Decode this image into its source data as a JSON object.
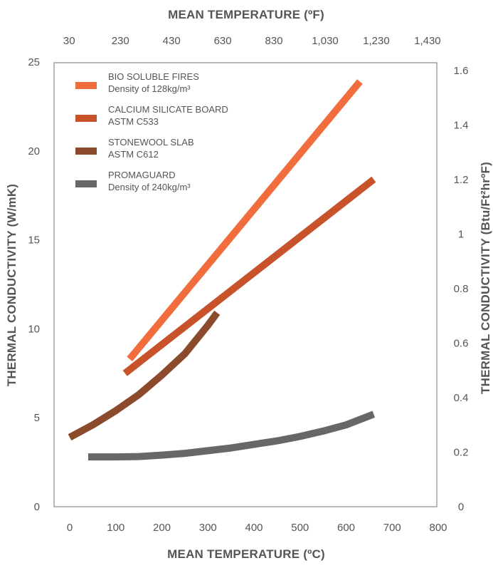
{
  "chart_data": {
    "type": "line",
    "x_axis": {
      "label": "MEAN TEMPERATURE (ºC)",
      "range": [
        0,
        800
      ],
      "ticks": [
        0,
        100,
        200,
        300,
        400,
        500,
        600,
        700,
        800
      ],
      "tick_labels": [
        "0",
        "100",
        "200",
        "300",
        "400",
        "500",
        "600",
        "700",
        "800"
      ]
    },
    "x2_axis": {
      "label": "MEAN TEMPERATURE (ºF)",
      "tick_labels": [
        "30",
        "230",
        "430",
        "630",
        "830",
        "1,030",
        "1,230",
        "1,430"
      ]
    },
    "y_axis": {
      "label": "THERMAL CONDUCTIVITY (W/mK)",
      "range": [
        0,
        25
      ],
      "ticks": [
        0,
        5,
        10,
        15,
        20,
        25
      ],
      "tick_labels": [
        "0",
        "5",
        "10",
        "15",
        "20",
        "25"
      ]
    },
    "y2_axis": {
      "label": "THERMAL CONDUCTIVITY (Btu/Ft²hrºF)",
      "range": [
        0,
        1.7
      ],
      "ticks": [
        0,
        0.2,
        0.4,
        0.6,
        0.8,
        1,
        1.2,
        1.4,
        1.6
      ],
      "tick_labels": [
        "0",
        "0.2",
        "0.4",
        "0.6",
        "0.8",
        "1",
        "1.2",
        "1.4",
        "1.6"
      ]
    },
    "grid": false,
    "legend_position": "top-left",
    "series": [
      {
        "name": "BIO SOLUBLE FIRES",
        "subtitle": "Density of 128kg/m³",
        "color": "#f26d3d",
        "x": [
          130,
          630
        ],
        "y": [
          8.3,
          23.9
        ]
      },
      {
        "name": "CALCIUM SILICATE BOARD",
        "subtitle": "ASTM C533",
        "color": "#c8522a",
        "x": [
          120,
          660
        ],
        "y": [
          7.5,
          18.4
        ]
      },
      {
        "name": "STONEWOOL SLAB",
        "subtitle": "ASTM C612",
        "color": "#8b4a2b",
        "x": [
          0,
          50,
          100,
          150,
          200,
          250,
          300,
          320
        ],
        "y": [
          3.9,
          4.6,
          5.4,
          6.3,
          7.4,
          8.6,
          10.2,
          10.9
        ]
      },
      {
        "name": "PROMAGUARD",
        "subtitle": "Density of 240kg/m³",
        "color": "#666868",
        "x": [
          40,
          100,
          150,
          200,
          250,
          300,
          350,
          400,
          450,
          500,
          550,
          600,
          660
        ],
        "y": [
          2.8,
          2.8,
          2.82,
          2.9,
          3.0,
          3.15,
          3.3,
          3.5,
          3.7,
          3.95,
          4.25,
          4.6,
          5.2
        ]
      }
    ]
  }
}
